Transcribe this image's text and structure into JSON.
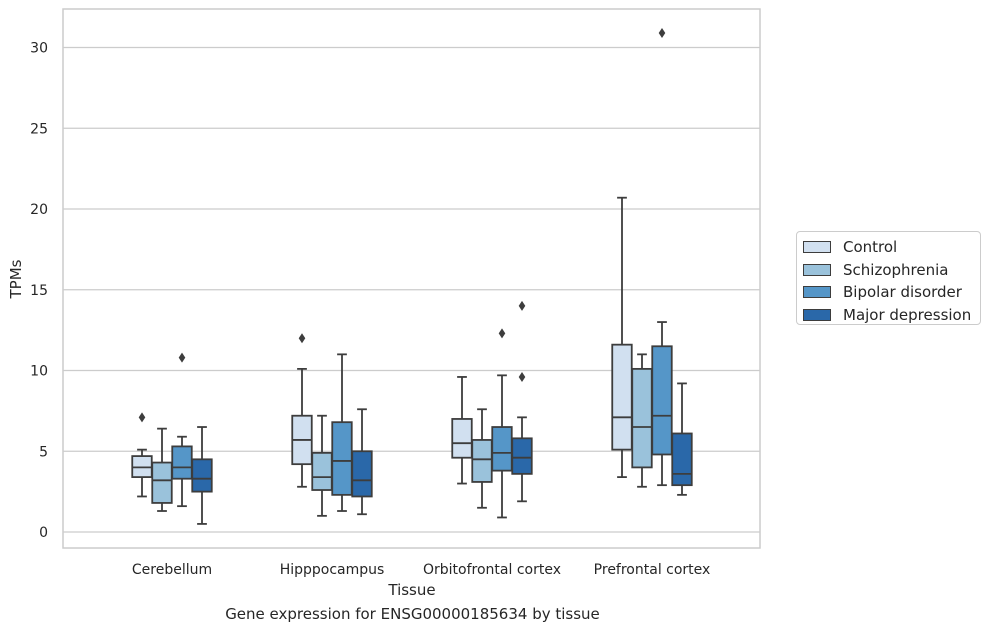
{
  "chart_data": {
    "type": "box",
    "title": "",
    "caption": "Gene expression for ENSG00000185634 by tissue",
    "xlabel": "Tissue",
    "ylabel": "TPMs",
    "ylim": [
      -1,
      32.5
    ],
    "yticks": [
      0,
      5,
      10,
      15,
      20,
      25,
      30
    ],
    "grid": "horizontal",
    "legend_position": "right",
    "categories": [
      "Cerebellum",
      "Hipppocampus",
      "Orbitofrontal cortex",
      "Prefrontal cortex"
    ],
    "series": [
      {
        "name": "Control",
        "color": "#d1e0f0",
        "boxes": [
          {
            "whislo": 2.2,
            "q1": 3.4,
            "med": 4.0,
            "q3": 4.7,
            "whishi": 5.1,
            "fliers": [
              7.1
            ]
          },
          {
            "whislo": 2.8,
            "q1": 4.2,
            "med": 5.7,
            "q3": 7.2,
            "whishi": 10.1,
            "fliers": [
              12.0
            ]
          },
          {
            "whislo": 3.0,
            "q1": 4.6,
            "med": 5.5,
            "q3": 7.0,
            "whishi": 9.6,
            "fliers": []
          },
          {
            "whislo": 3.4,
            "q1": 5.1,
            "med": 7.1,
            "q3": 11.6,
            "whishi": 20.7,
            "fliers": []
          }
        ]
      },
      {
        "name": "Schizophrenia",
        "color": "#9ac2db",
        "boxes": [
          {
            "whislo": 1.3,
            "q1": 1.8,
            "med": 3.2,
            "q3": 4.3,
            "whishi": 6.4,
            "fliers": []
          },
          {
            "whislo": 1.0,
            "q1": 2.6,
            "med": 3.4,
            "q3": 4.9,
            "whishi": 7.2,
            "fliers": []
          },
          {
            "whislo": 1.5,
            "q1": 3.1,
            "med": 4.5,
            "q3": 5.7,
            "whishi": 7.6,
            "fliers": []
          },
          {
            "whislo": 2.8,
            "q1": 4.0,
            "med": 6.5,
            "q3": 10.1,
            "whishi": 11.0,
            "fliers": []
          }
        ]
      },
      {
        "name": "Bipolar disorder",
        "color": "#5596c8",
        "boxes": [
          {
            "whislo": 1.6,
            "q1": 3.3,
            "med": 4.0,
            "q3": 5.3,
            "whishi": 5.9,
            "fliers": [
              10.8
            ]
          },
          {
            "whislo": 1.3,
            "q1": 2.3,
            "med": 4.4,
            "q3": 6.8,
            "whishi": 11.0,
            "fliers": []
          },
          {
            "whislo": 0.9,
            "q1": 3.8,
            "med": 4.9,
            "q3": 6.5,
            "whishi": 9.7,
            "fliers": [
              12.3
            ]
          },
          {
            "whislo": 2.9,
            "q1": 4.8,
            "med": 7.2,
            "q3": 11.5,
            "whishi": 13.0,
            "fliers": [
              30.9
            ]
          }
        ]
      },
      {
        "name": "Major depression",
        "color": "#2a68a9",
        "boxes": [
          {
            "whislo": 0.5,
            "q1": 2.5,
            "med": 3.3,
            "q3": 4.5,
            "whishi": 6.5,
            "fliers": []
          },
          {
            "whislo": 1.1,
            "q1": 2.2,
            "med": 3.2,
            "q3": 5.0,
            "whishi": 7.6,
            "fliers": []
          },
          {
            "whislo": 1.9,
            "q1": 3.6,
            "med": 4.6,
            "q3": 5.8,
            "whishi": 7.1,
            "fliers": [
              9.6,
              14.0
            ]
          },
          {
            "whislo": 2.3,
            "q1": 2.9,
            "med": 3.6,
            "q3": 6.1,
            "whishi": 9.2,
            "fliers": []
          }
        ]
      }
    ]
  }
}
